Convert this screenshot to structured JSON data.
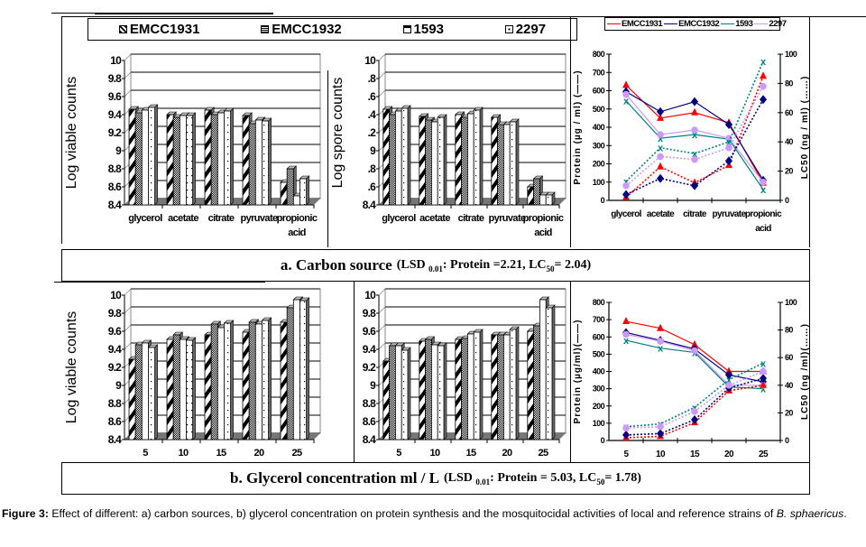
{
  "legend": {
    "items": [
      {
        "label": "EMCC1931",
        "pattern": "diagonal"
      },
      {
        "label": "EMCC1932",
        "pattern": "dense-dots"
      },
      {
        "label": "1593",
        "pattern": "plain"
      },
      {
        "label": "2297",
        "pattern": "sparse-dots"
      }
    ]
  },
  "line_legend": {
    "items": [
      {
        "label": "EMCC1931",
        "color": "#ff0000",
        "marker": "triangle"
      },
      {
        "label": "EMCC1932",
        "color": "#000080",
        "marker": "diamond"
      },
      {
        "label": "1593",
        "color": "#008080",
        "marker": "x"
      },
      {
        "label": "2297",
        "color": "#cc99ff",
        "marker": "circle"
      }
    ]
  },
  "captions": {
    "a_main": "a. Carbon source",
    "a_sub_prefix": "(LSD",
    "a_sub_subscript": "0.01",
    "a_sub_mid": ": Protein  =2.21, LC",
    "a_sub_sub50": "50",
    "a_sub_end": "=  2.04)",
    "b_main": "b. Glycerol concentration ml / L",
    "b_sub_prefix": "(LSD",
    "b_sub_subscript": "0.01",
    "b_sub_mid": ": Protein  = 5.03,  LC",
    "b_sub_sub50": "50",
    "b_sub_end": "=  1.78)"
  },
  "figure_caption": {
    "label": "Figure 3:",
    "text": " Effect of different: a) carbon sources, b) glycerol concentration on protein synthesis and the mosquitocidal activities of local and reference strains of ",
    "italic_genus": "B. sphaericus",
    "end": "."
  },
  "chart_data": [
    {
      "id": "a-viable",
      "type": "bar",
      "title": "",
      "xlabel": "",
      "ylabel": "Log viable counts",
      "ylim": [
        8.4,
        10
      ],
      "yticks": [
        "8.4",
        "8.6",
        "8.8",
        "9",
        "9.2",
        "9.4",
        "9.6",
        "9.8",
        "10"
      ],
      "categories": [
        "glycerol",
        "acetate",
        "citrate",
        "pyruvate",
        "propionic acid"
      ],
      "series": [
        {
          "name": "EMCC1931",
          "values": [
            9.46,
            9.4,
            9.45,
            9.39,
            8.65
          ]
        },
        {
          "name": "EMCC1932",
          "values": [
            9.42,
            9.37,
            9.4,
            9.3,
            8.8
          ]
        },
        {
          "name": "1593",
          "values": [
            9.45,
            9.39,
            9.42,
            9.34,
            8.5
          ]
        },
        {
          "name": "2297",
          "values": [
            9.48,
            9.39,
            9.44,
            9.33,
            8.69
          ]
        }
      ],
      "grid": true
    },
    {
      "id": "a-spore",
      "type": "bar",
      "ylabel": "Log spore counts",
      "ylim": [
        8.4,
        10
      ],
      "yticks": [
        "8.4",
        ".6",
        ".8",
        "9",
        ".2",
        ".4",
        ".6",
        ".8",
        "10"
      ],
      "categories": [
        "glycerol",
        "acetate",
        "citrate",
        "pyruvate",
        "propionic acid"
      ],
      "series": [
        {
          "name": "EMCC1931",
          "values": [
            9.46,
            9.38,
            9.4,
            9.37,
            8.6
          ]
        },
        {
          "name": "EMCC1932",
          "values": [
            9.4,
            9.34,
            9.37,
            9.29,
            8.69
          ]
        },
        {
          "name": "1593",
          "values": [
            9.44,
            9.32,
            9.41,
            9.29,
            8.51
          ]
        },
        {
          "name": "2297",
          "values": [
            9.47,
            9.37,
            9.45,
            9.32,
            8.51
          ]
        }
      ],
      "grid": true
    },
    {
      "id": "a-protein-lc50",
      "type": "line",
      "categories": [
        "glycerol",
        "acetate",
        "citrate",
        "pyruvate",
        "propionic acid"
      ],
      "ylabel": "Protein (µg / ml) (——)",
      "y2label": "LC50 (ng / ml) (……)",
      "ylim": [
        0,
        800
      ],
      "y2lim": [
        0,
        100
      ],
      "yticks": [
        "0",
        "100",
        "200",
        "300",
        "400",
        "500",
        "600",
        "700",
        "800"
      ],
      "y2ticks": [
        "0",
        "20",
        "40",
        "60",
        "80",
        "100"
      ],
      "protein": [
        {
          "name": "EMCC1931",
          "values": [
            630,
            450,
            480,
            425,
            95
          ]
        },
        {
          "name": "EMCC1932",
          "values": [
            595,
            485,
            540,
            415,
            110
          ]
        },
        {
          "name": "1593",
          "values": [
            545,
            340,
            360,
            335,
            60
          ]
        },
        {
          "name": "2297",
          "values": [
            580,
            360,
            385,
            340,
            100
          ]
        }
      ],
      "lc50": [
        {
          "name": "EMCC1931",
          "values": [
            2,
            23,
            12,
            24,
            85
          ]
        },
        {
          "name": "EMCC1932",
          "values": [
            4,
            15,
            10,
            27,
            69
          ]
        },
        {
          "name": "1593",
          "values": [
            13,
            36,
            32,
            40,
            95
          ]
        },
        {
          "name": "2297",
          "values": [
            10,
            30,
            28,
            36,
            78
          ]
        }
      ]
    },
    {
      "id": "b-viable",
      "type": "bar",
      "ylabel": "Log viable counts",
      "ylim": [
        8.4,
        10
      ],
      "yticks": [
        "8.4",
        "8.6",
        "8.8",
        "9",
        "9.2",
        "9.4",
        "9.6",
        "9.8",
        "10"
      ],
      "categories": [
        "5",
        "10",
        "15",
        "20",
        "25"
      ],
      "series": [
        {
          "name": "EMCC1931",
          "values": [
            9.29,
            9.51,
            9.56,
            9.59,
            9.7
          ]
        },
        {
          "name": "EMCC1932",
          "values": [
            9.45,
            9.56,
            9.68,
            9.7,
            9.86
          ]
        },
        {
          "name": "1593",
          "values": [
            9.47,
            9.51,
            9.64,
            9.68,
            9.95
          ]
        },
        {
          "name": "2297",
          "values": [
            9.42,
            9.5,
            9.69,
            9.72,
            9.94
          ]
        }
      ],
      "grid": true
    },
    {
      "id": "b-spore",
      "type": "bar",
      "ylabel": "",
      "ylim": [
        8.4,
        10
      ],
      "yticks": [
        "8.4",
        "8.6",
        "8.8",
        "9",
        "9.2",
        "9.4",
        "9.6",
        "9.8",
        "10"
      ],
      "categories": [
        "5",
        "10",
        "15",
        "20",
        "25"
      ],
      "series": [
        {
          "name": "EMCC1931",
          "values": [
            9.27,
            9.49,
            9.51,
            9.56,
            9.6
          ]
        },
        {
          "name": "EMCC1932",
          "values": [
            9.44,
            9.51,
            9.52,
            9.56,
            9.66
          ]
        },
        {
          "name": "1593",
          "values": [
            9.44,
            9.45,
            9.57,
            9.56,
            9.95
          ]
        },
        {
          "name": "2297",
          "values": [
            9.39,
            9.44,
            9.59,
            9.62,
            9.86
          ]
        }
      ],
      "grid": true
    },
    {
      "id": "b-protein-lc50",
      "type": "line",
      "categories": [
        "5",
        "10",
        "15",
        "20",
        "25"
      ],
      "ylabel": "Protein (µg/ml)(——)",
      "y2label": "LC50 (ng /ml)(……)",
      "ylim": [
        0,
        800
      ],
      "y2lim": [
        0,
        100
      ],
      "yticks": [
        "0",
        "100",
        "200",
        "300",
        "400",
        "500",
        "600",
        "700",
        "800"
      ],
      "y2ticks": [
        "0",
        "20",
        "40",
        "60",
        "80",
        "100"
      ],
      "protein": [
        {
          "name": "EMCC1931",
          "values": [
            690,
            650,
            555,
            400,
            400
          ]
        },
        {
          "name": "EMCC1932",
          "values": [
            625,
            580,
            530,
            380,
            340
          ]
        },
        {
          "name": "1593",
          "values": [
            580,
            535,
            510,
            310,
            300
          ]
        },
        {
          "name": "2297",
          "values": [
            615,
            575,
            520,
            320,
            320
          ]
        }
      ],
      "lc50": [
        {
          "name": "EMCC1931",
          "values": [
            2,
            3,
            13,
            36,
            40
          ]
        },
        {
          "name": "EMCC1932",
          "values": [
            4,
            5,
            15,
            38,
            45
          ]
        },
        {
          "name": "1593",
          "values": [
            10,
            12,
            24,
            44,
            56
          ]
        },
        {
          "name": "2297",
          "values": [
            9,
            10,
            21,
            40,
            50
          ]
        }
      ]
    }
  ]
}
